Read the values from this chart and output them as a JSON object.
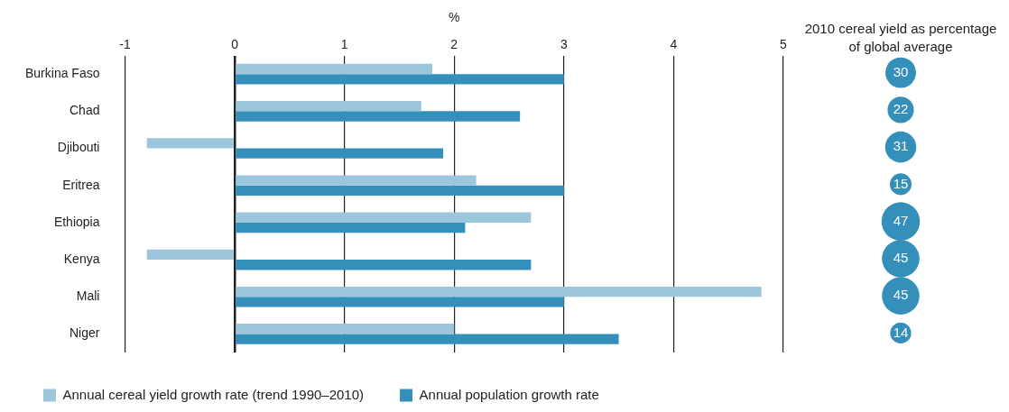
{
  "chart_data": [
    {
      "type": "bar",
      "orientation": "horizontal",
      "xlabel": "%",
      "categories": [
        "Burkina Faso",
        "Chad",
        "Djibouti",
        "Eritrea",
        "Ethiopia",
        "Kenya",
        "Mali",
        "Niger"
      ],
      "series": [
        {
          "name": "Annual cereal yield growth rate (trend 1990–2010)",
          "color": "#9bc6db",
          "values": [
            1.8,
            1.7,
            -0.8,
            2.2,
            2.7,
            -0.8,
            4.8,
            2.0
          ]
        },
        {
          "name": "Annual population growth rate",
          "color": "#3490ba",
          "values": [
            3.0,
            2.6,
            1.9,
            3.0,
            2.1,
            2.7,
            3.0,
            3.5
          ]
        }
      ],
      "xlim": [
        -1,
        5
      ],
      "xticks": [
        -1,
        0,
        1,
        2,
        3,
        4,
        5
      ],
      "grid": "x",
      "legend": "bottom"
    },
    {
      "type": "other",
      "title": "2010 cereal yield as percentage of global average",
      "categories": [
        null,
        null,
        null,
        null,
        null,
        null,
        null,
        null
      ],
      "values": [
        30,
        22,
        31,
        15,
        47,
        45,
        45,
        14
      ],
      "color": "#3490ba",
      "data_labels": true
    }
  ]
}
